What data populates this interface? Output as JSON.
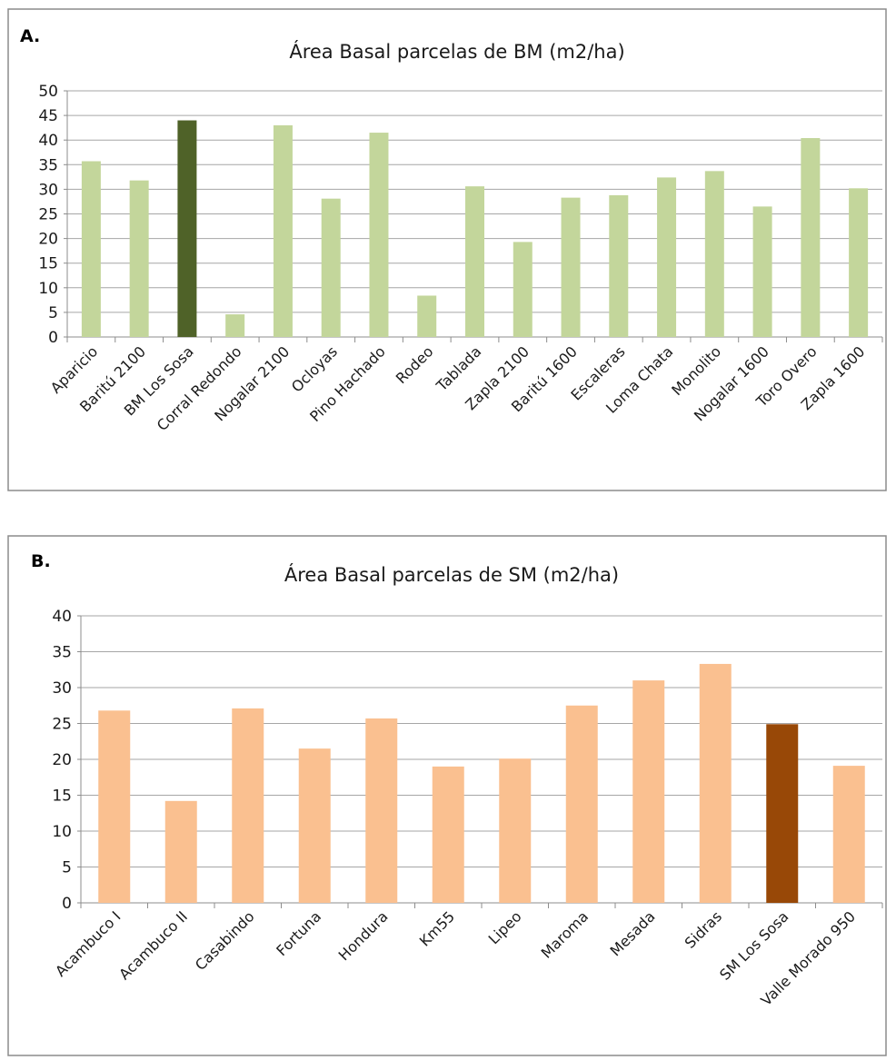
{
  "chart_data": [
    {
      "type": "bar",
      "panel_label": "A.",
      "title": "Área Basal parcelas de BM (m2/ha)",
      "categories": [
        "Aparicio",
        "Baritú 2100",
        "BM Los Sosa",
        "Corral Redondo",
        "Nogalar 2100",
        "Ocloyas",
        "Pino Hachado",
        "Rodeo",
        "Tablada",
        "Zapla 2100",
        "Baritú 1600",
        "Escaleras",
        "Loma Chata",
        "Monolito",
        "Nogalar 1600",
        "Toro Overo",
        "Zapla 1600"
      ],
      "values": [
        35.7,
        31.8,
        44.0,
        4.6,
        43.0,
        28.1,
        41.5,
        8.4,
        30.6,
        19.3,
        28.3,
        28.8,
        32.4,
        33.7,
        26.5,
        40.4,
        30.2
      ],
      "highlight_index": 2,
      "bar_color": "#c3d69b",
      "highlight_color": "#4f6228",
      "ylim": [
        0,
        50
      ],
      "yticks": [
        0,
        5,
        10,
        15,
        20,
        25,
        30,
        35,
        40,
        45,
        50
      ],
      "grid": true,
      "legend": "none"
    },
    {
      "type": "bar",
      "panel_label": "B.",
      "title": "Área Basal parcelas de SM (m2/ha)",
      "categories": [
        "Acambuco I",
        "Acambuco II",
        "Casabindo",
        "Fortuna",
        "Hondura",
        "Km55",
        "Lipeo",
        "Maroma",
        "Mesada",
        "Sidras",
        "SM Los Sosa",
        "Valle Morado 950"
      ],
      "values": [
        26.8,
        14.2,
        27.1,
        21.5,
        25.7,
        19.0,
        20.1,
        27.5,
        31.0,
        33.3,
        24.9,
        19.1
      ],
      "highlight_index": 10,
      "bar_color": "#fac090",
      "highlight_color": "#984807",
      "ylim": [
        0,
        40
      ],
      "yticks": [
        0,
        5,
        10,
        15,
        20,
        25,
        30,
        35,
        40
      ],
      "grid": true,
      "legend": "none"
    }
  ]
}
